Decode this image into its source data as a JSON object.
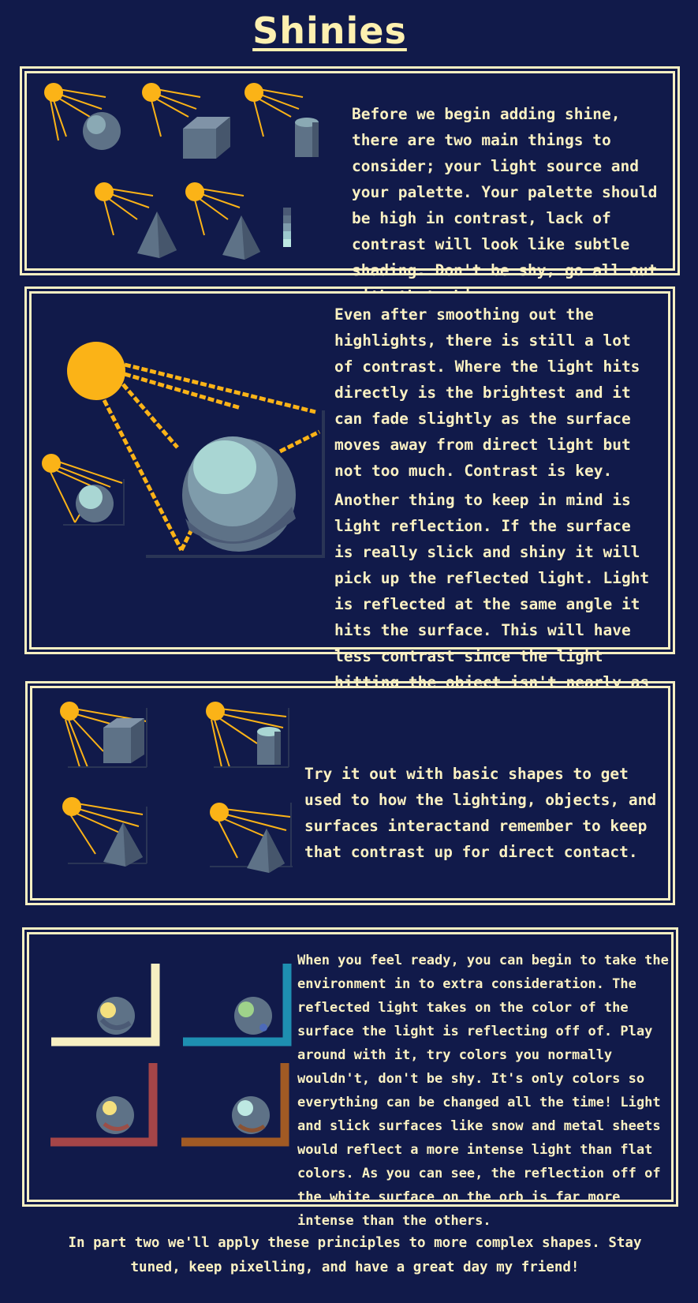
{
  "page": {
    "title": "Shinies"
  },
  "section1": {
    "text": "Before we begin adding shine, there are two main things to consider; your light source and your palette. Your palette should be high in contrast, lack of contrast will look like subtle shading. Don't be shy, go all out with that shine."
  },
  "section2": {
    "text1": "Even after smoothing out the highlights, there is still a lot of contrast. Where the light hits directly is the brightest and it can fade slightly as the surface moves away from direct light but not too much. Contrast is key.",
    "text2": "Another thing to keep in mind is light reflection. If the surface is really slick and shiny it will pick up the reflected light. Light is reflected at the same angle it hits the surface. This will have less contrast since the light hitting the object isn't nearly as intense as direct light."
  },
  "section3": {
    "text": "Try it out with basic shapes to get used to how the lighting, objects, and surfaces interactand remember to keep that contrast up for direct contact."
  },
  "section4": {
    "text": "When you feel ready, you can begin to take the environment in to extra consideration. The reflected light takes on the color of the surface the light is reflecting off of. Play around with it, try colors you normally wouldn't, don't be shy. It's only colors so everything can be changed all the time! Light and slick surfaces like snow and metal sheets would reflect a more intense light than flat colors. As you can see, the reflection off of the white surface on the orb is far more intense than the others."
  },
  "footer": {
    "text": "In part two we'll apply these principles to more complex shapes. Stay tuned, keep pixelling, and have a great day my friend!"
  },
  "colors": {
    "background": "#111a4a",
    "border": "#f7efc2",
    "sun": "#fbb317",
    "surface_white": "#f7efc2",
    "surface_teal": "#1e8fb1",
    "surface_red": "#a54548",
    "surface_brown": "#a15a24"
  }
}
